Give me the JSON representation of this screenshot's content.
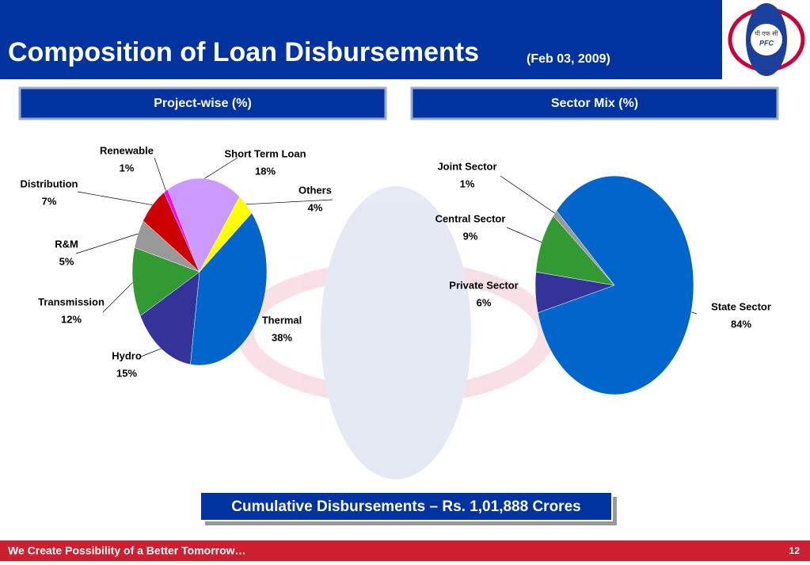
{
  "header": {
    "title": "Composition of Loan Disbursements",
    "subtitle": "(Feb 03,  2009)"
  },
  "logo": {
    "hindi": "पी एफ सी",
    "text": "PFC"
  },
  "chart_data": [
    {
      "type": "pie",
      "title": "Project-wise (%)",
      "categories": [
        "Thermal",
        "Hydro",
        "Transmission",
        "R&M",
        "Distribution",
        "Renewable",
        "Short Term Loan",
        "Others"
      ],
      "values": [
        38,
        15,
        12,
        5,
        7,
        1,
        18,
        4
      ],
      "value_labels": [
        "38%",
        "15%",
        "12%",
        "5%",
        "7%",
        "1%",
        "18%",
        "4%"
      ],
      "colors": [
        "#0066cc",
        "#333399",
        "#339933",
        "#999999",
        "#cc0000",
        "#ff00ff",
        "#cc99ff",
        "#ffff00"
      ]
    },
    {
      "type": "pie",
      "title": "Sector Mix (%)",
      "categories": [
        "State Sector",
        "Private Sector",
        "Central  Sector",
        "Joint  Sector"
      ],
      "values": [
        84,
        6,
        9,
        1
      ],
      "value_labels": [
        "84%",
        "6%",
        "9%",
        "1%"
      ],
      "colors": [
        "#0066cc",
        "#333399",
        "#339933",
        "#999999"
      ]
    }
  ],
  "summary": "Cumulative Disbursements – Rs. 1,01,888 Crores",
  "footer": {
    "tagline": "We Create Possibility of a Better Tomorrow…",
    "page": "12"
  }
}
